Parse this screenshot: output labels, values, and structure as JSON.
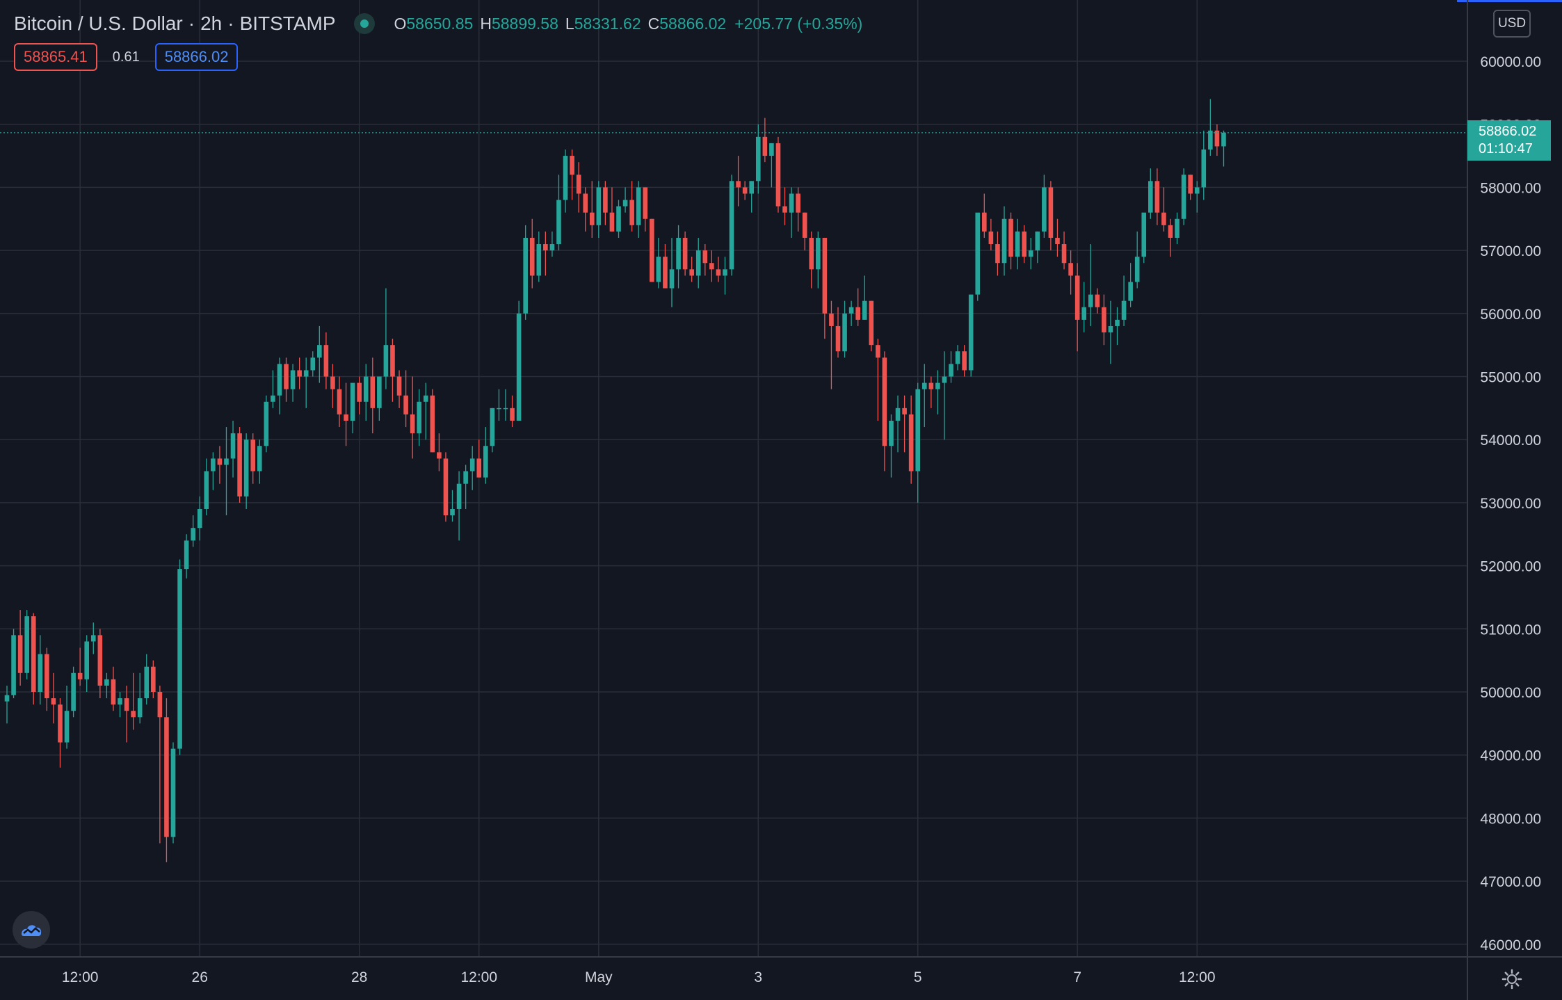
{
  "header": {
    "symbol": "Bitcoin / U.S. Dollar",
    "sep1": "·",
    "interval": "2h",
    "sep2": "·",
    "exchange": "BITSTAMP",
    "open_label": "O",
    "open_value": "58650.85",
    "high_label": "H",
    "high_value": "58899.58",
    "low_label": "L",
    "low_value": "58331.62",
    "close_label": "C",
    "close_value": "58866.02",
    "change": "+205.77 (+0.35%)"
  },
  "trade": {
    "sell_price": "58865.41",
    "spread": "0.61",
    "buy_price": "58866.02"
  },
  "currency_button": "USD",
  "last_price_tag": {
    "price": "58866.02",
    "countdown": "01:10:47"
  },
  "colors": {
    "background": "#131722",
    "grid": "#2a2e39",
    "up": "#26a69a",
    "down": "#ef5350",
    "text": "#d1d4dc"
  },
  "icons": {
    "logo": "tradingview-cloud-icon",
    "settings": "gear-icon",
    "live": "live-status-icon"
  },
  "chart_data": {
    "type": "candlestick",
    "y_range": [
      45700,
      60600
    ],
    "y_ticks": [
      {
        "value": 46000,
        "label": "46000.00"
      },
      {
        "value": 47000,
        "label": "47000.00"
      },
      {
        "value": 48000,
        "label": "48000.00"
      },
      {
        "value": 49000,
        "label": "49000.00"
      },
      {
        "value": 50000,
        "label": "50000.00"
      },
      {
        "value": 51000,
        "label": "51000.00"
      },
      {
        "value": 52000,
        "label": "52000.00"
      },
      {
        "value": 53000,
        "label": "53000.00"
      },
      {
        "value": 54000,
        "label": "54000.00"
      },
      {
        "value": 55000,
        "label": "55000.00"
      },
      {
        "value": 56000,
        "label": "56000.00"
      },
      {
        "value": 57000,
        "label": "57000.00"
      },
      {
        "value": 58000,
        "label": "58000.00"
      },
      {
        "value": 59000,
        "label": "59000.00"
      },
      {
        "value": 60000,
        "label": "60000.00"
      }
    ],
    "x_ticks": [
      {
        "index": 11,
        "label": "12:00"
      },
      {
        "index": 29,
        "label": "26"
      },
      {
        "index": 53,
        "label": "28"
      },
      {
        "index": 71,
        "label": "12:00"
      },
      {
        "index": 89,
        "label": "May"
      },
      {
        "index": 113,
        "label": "3"
      },
      {
        "index": 137,
        "label": "5"
      },
      {
        "index": 161,
        "label": "7"
      },
      {
        "index": 179,
        "label": "12:00"
      }
    ],
    "last_price": 58866.02,
    "candles": [
      [
        49850,
        50100,
        49500,
        49950
      ],
      [
        49950,
        51000,
        49900,
        50900
      ],
      [
        50900,
        51300,
        50100,
        50300
      ],
      [
        50300,
        51300,
        50200,
        51200
      ],
      [
        51200,
        51250,
        49800,
        50000
      ],
      [
        50000,
        50900,
        49800,
        50600
      ],
      [
        50600,
        50700,
        49700,
        49900
      ],
      [
        49900,
        50300,
        49500,
        49800
      ],
      [
        49800,
        49900,
        48800,
        49200
      ],
      [
        49200,
        50100,
        49100,
        49700
      ],
      [
        49700,
        50400,
        49600,
        50300
      ],
      [
        50300,
        50700,
        50100,
        50200
      ],
      [
        50200,
        50900,
        50000,
        50800
      ],
      [
        50800,
        51100,
        50600,
        50900
      ],
      [
        50900,
        51000,
        49900,
        50100
      ],
      [
        50100,
        50300,
        49900,
        50200
      ],
      [
        50200,
        50400,
        49700,
        49800
      ],
      [
        49800,
        50000,
        49600,
        49900
      ],
      [
        49900,
        50100,
        49200,
        49700
      ],
      [
        49700,
        50300,
        49400,
        49600
      ],
      [
        49600,
        50300,
        49500,
        49900
      ],
      [
        49900,
        50600,
        49800,
        50400
      ],
      [
        50400,
        50500,
        49900,
        50000
      ],
      [
        50000,
        50100,
        47600,
        49600
      ],
      [
        49600,
        49900,
        47300,
        47700
      ],
      [
        47700,
        49200,
        47600,
        49100
      ],
      [
        49100,
        52100,
        49000,
        51950
      ],
      [
        51950,
        52500,
        51800,
        52400
      ],
      [
        52400,
        52800,
        52300,
        52600
      ],
      [
        52600,
        53100,
        52400,
        52900
      ],
      [
        52900,
        53700,
        52800,
        53500
      ],
      [
        53500,
        53800,
        53200,
        53700
      ],
      [
        53700,
        53900,
        53300,
        53600
      ],
      [
        53600,
        54200,
        52800,
        53700
      ],
      [
        53700,
        54300,
        53400,
        54100
      ],
      [
        54100,
        54200,
        53000,
        53100
      ],
      [
        53100,
        54100,
        52900,
        54000
      ],
      [
        54000,
        54100,
        53300,
        53500
      ],
      [
        53500,
        54000,
        53300,
        53900
      ],
      [
        53900,
        54700,
        53800,
        54600
      ],
      [
        54600,
        55100,
        54500,
        54700
      ],
      [
        54700,
        55300,
        54400,
        55200
      ],
      [
        55200,
        55300,
        54600,
        54800
      ],
      [
        54800,
        55200,
        54600,
        55100
      ],
      [
        55100,
        55300,
        54800,
        55000
      ],
      [
        55000,
        55300,
        54500,
        55100
      ],
      [
        55100,
        55400,
        55000,
        55300
      ],
      [
        55300,
        55800,
        54900,
        55500
      ],
      [
        55500,
        55700,
        54800,
        55000
      ],
      [
        55000,
        55200,
        54500,
        54800
      ],
      [
        54800,
        55000,
        54200,
        54400
      ],
      [
        54400,
        54900,
        53900,
        54300
      ],
      [
        54300,
        54800,
        54100,
        54900
      ],
      [
        54900,
        55000,
        54400,
        54600
      ],
      [
        54600,
        55200,
        54300,
        55000
      ],
      [
        55000,
        55300,
        54100,
        54500
      ],
      [
        54500,
        55000,
        54300,
        55000
      ],
      [
        55000,
        56400,
        54800,
        55500
      ],
      [
        55500,
        55600,
        54600,
        55000
      ],
      [
        55000,
        55100,
        54500,
        54700
      ],
      [
        54700,
        55100,
        54200,
        54400
      ],
      [
        54400,
        55000,
        53700,
        54100
      ],
      [
        54100,
        54800,
        53900,
        54600
      ],
      [
        54600,
        54900,
        54000,
        54700
      ],
      [
        54700,
        54800,
        53800,
        53800
      ],
      [
        53800,
        54100,
        53500,
        53700
      ],
      [
        53700,
        53800,
        52700,
        52800
      ],
      [
        52800,
        53200,
        52700,
        52900
      ],
      [
        52900,
        53500,
        52400,
        53300
      ],
      [
        53300,
        53600,
        52900,
        53500
      ],
      [
        53500,
        53900,
        53200,
        53700
      ],
      [
        53700,
        54000,
        53400,
        53400
      ],
      [
        53400,
        54200,
        53300,
        53900
      ],
      [
        53900,
        54500,
        53800,
        54500
      ],
      [
        54500,
        54800,
        54300,
        54500
      ],
      [
        54500,
        54800,
        54300,
        54500
      ],
      [
        54500,
        54700,
        54200,
        54300
      ],
      [
        54300,
        56200,
        54300,
        56000
      ],
      [
        56000,
        57400,
        55900,
        57200
      ],
      [
        57200,
        57500,
        56400,
        56600
      ],
      [
        56600,
        57300,
        56500,
        57100
      ],
      [
        57100,
        57300,
        56600,
        57000
      ],
      [
        57000,
        57300,
        56900,
        57100
      ],
      [
        57100,
        58200,
        57000,
        57800
      ],
      [
        57800,
        58600,
        57600,
        58500
      ],
      [
        58500,
        58600,
        57800,
        58200
      ],
      [
        58200,
        58400,
        57600,
        57900
      ],
      [
        57900,
        58000,
        57300,
        57600
      ],
      [
        57600,
        58100,
        57200,
        57400
      ],
      [
        57400,
        58100,
        57200,
        58000
      ],
      [
        58000,
        58100,
        57400,
        57600
      ],
      [
        57600,
        58000,
        57300,
        57300
      ],
      [
        57300,
        57800,
        57200,
        57700
      ],
      [
        57700,
        58000,
        57600,
        57800
      ],
      [
        57800,
        58100,
        57300,
        57400
      ],
      [
        57400,
        58100,
        57200,
        58000
      ],
      [
        58000,
        58000,
        57300,
        57500
      ],
      [
        57500,
        57500,
        56500,
        56500
      ],
      [
        56500,
        57200,
        56400,
        56900
      ],
      [
        56900,
        57100,
        56400,
        56400
      ],
      [
        56400,
        57200,
        56100,
        56700
      ],
      [
        56700,
        57400,
        56400,
        57200
      ],
      [
        57200,
        57300,
        56600,
        56700
      ],
      [
        56700,
        56900,
        56500,
        56600
      ],
      [
        56600,
        57200,
        56400,
        57000
      ],
      [
        57000,
        57100,
        56600,
        56800
      ],
      [
        56800,
        57000,
        56500,
        56700
      ],
      [
        56700,
        56900,
        56500,
        56600
      ],
      [
        56600,
        56900,
        56300,
        56700
      ],
      [
        56700,
        58200,
        56600,
        58100
      ],
      [
        58100,
        58500,
        57700,
        58000
      ],
      [
        58000,
        58100,
        57800,
        57900
      ],
      [
        57900,
        58100,
        57600,
        58100
      ],
      [
        58100,
        59000,
        57900,
        58800
      ],
      [
        58800,
        59100,
        58400,
        58500
      ],
      [
        58500,
        58700,
        58000,
        58700
      ],
      [
        58700,
        58800,
        57600,
        57700
      ],
      [
        57700,
        58000,
        57400,
        57600
      ],
      [
        57600,
        58000,
        57200,
        57900
      ],
      [
        57900,
        58000,
        57300,
        57600
      ],
      [
        57600,
        57600,
        57000,
        57200
      ],
      [
        57200,
        57300,
        56400,
        56700
      ],
      [
        56700,
        57300,
        56400,
        57200
      ],
      [
        57200,
        57200,
        55600,
        56000
      ],
      [
        56000,
        56200,
        54800,
        55800
      ],
      [
        55800,
        56100,
        55300,
        55400
      ],
      [
        55400,
        56200,
        55300,
        56000
      ],
      [
        56000,
        56200,
        55800,
        56100
      ],
      [
        56100,
        56400,
        55800,
        55900
      ],
      [
        55900,
        56600,
        55900,
        56200
      ],
      [
        56200,
        56200,
        55400,
        55500
      ],
      [
        55500,
        55600,
        54300,
        55300
      ],
      [
        55300,
        55400,
        53500,
        53900
      ],
      [
        53900,
        54400,
        53400,
        54300
      ],
      [
        54300,
        54700,
        53800,
        54500
      ],
      [
        54500,
        54700,
        53800,
        54400
      ],
      [
        54400,
        54700,
        53300,
        53500
      ],
      [
        53500,
        54900,
        53000,
        54800
      ],
      [
        54800,
        55200,
        54200,
        54900
      ],
      [
        54900,
        55000,
        54500,
        54800
      ],
      [
        54800,
        55100,
        54400,
        54900
      ],
      [
        54900,
        55400,
        54000,
        55000
      ],
      [
        55000,
        55400,
        54900,
        55200
      ],
      [
        55200,
        55500,
        55100,
        55400
      ],
      [
        55400,
        55500,
        55000,
        55100
      ],
      [
        55100,
        56300,
        55000,
        56300
      ],
      [
        56300,
        57500,
        56200,
        57600
      ],
      [
        57600,
        57900,
        57200,
        57300
      ],
      [
        57300,
        57500,
        57000,
        57100
      ],
      [
        57100,
        57300,
        56600,
        56800
      ],
      [
        56800,
        57700,
        56600,
        57500
      ],
      [
        57500,
        57600,
        56700,
        56900
      ],
      [
        56900,
        57500,
        56700,
        57300
      ],
      [
        57300,
        57400,
        56800,
        56900
      ],
      [
        56900,
        57200,
        56700,
        57000
      ],
      [
        57000,
        57300,
        56800,
        57300
      ],
      [
        57300,
        58200,
        57200,
        58000
      ],
      [
        58000,
        58100,
        57000,
        57200
      ],
      [
        57200,
        57500,
        56900,
        57100
      ],
      [
        57100,
        57300,
        56700,
        56800
      ],
      [
        56800,
        57000,
        56300,
        56600
      ],
      [
        56600,
        56800,
        55400,
        55900
      ],
      [
        55900,
        56500,
        55700,
        56100
      ],
      [
        56100,
        57100,
        55800,
        56300
      ],
      [
        56300,
        56400,
        56000,
        56100
      ],
      [
        56100,
        56300,
        55500,
        55700
      ],
      [
        55700,
        56200,
        55200,
        55800
      ],
      [
        55800,
        56100,
        55500,
        55900
      ],
      [
        55900,
        56600,
        55800,
        56200
      ],
      [
        56200,
        56800,
        56100,
        56500
      ],
      [
        56500,
        57300,
        56400,
        56900
      ],
      [
        56900,
        57500,
        56800,
        57600
      ],
      [
        57600,
        58300,
        57500,
        58100
      ],
      [
        58100,
        58300,
        57400,
        57600
      ],
      [
        57600,
        58000,
        57300,
        57400
      ],
      [
        57400,
        57500,
        56900,
        57200
      ],
      [
        57200,
        57600,
        57100,
        57500
      ],
      [
        57500,
        58300,
        57400,
        58200
      ],
      [
        58200,
        58200,
        57800,
        57900
      ],
      [
        57900,
        58100,
        57600,
        58000
      ],
      [
        58000,
        58900,
        57800,
        58600
      ],
      [
        58600,
        59400,
        58500,
        58900
      ],
      [
        58900,
        59000,
        58500,
        58650
      ],
      [
        58650,
        58900,
        58330,
        58866
      ]
    ]
  }
}
